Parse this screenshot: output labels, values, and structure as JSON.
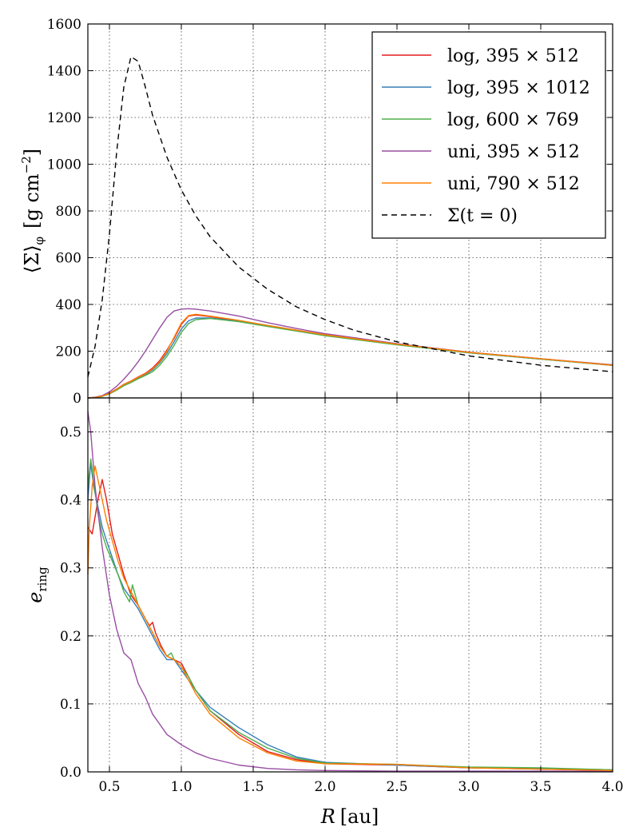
{
  "chart_data": [
    {
      "type": "line",
      "panel": "top",
      "xlim": [
        0.35,
        4.0
      ],
      "ylim": [
        0,
        1600
      ],
      "x_ticks": [
        "0.5",
        "1.0",
        "1.5",
        "2.0",
        "2.5",
        "3.0",
        "3.5",
        "4.0"
      ],
      "y_ticks": [
        "0",
        "200",
        "400",
        "600",
        "800",
        "1000",
        "1200",
        "1400",
        "1600"
      ],
      "grid": true,
      "ylabel_parts": [
        "⟨Σ⟩",
        "φ",
        "[g cm",
        "−2",
        "]"
      ],
      "legend_position": "top-right",
      "legend": [
        {
          "label": "log,  395 × 512",
          "color": "#e41a1c",
          "style": "solid"
        },
        {
          "label": "log,  395 × 1012",
          "color": "#377eb8",
          "style": "solid"
        },
        {
          "label": "log,  600 × 769",
          "color": "#4daf4a",
          "style": "solid"
        },
        {
          "label": "uni,  395 × 512",
          "color": "#984ea3",
          "style": "solid"
        },
        {
          "label": "uni,  790 × 512",
          "color": "#ff7f00",
          "style": "solid"
        },
        {
          "label": "Σ(t = 0)",
          "color": "#000000",
          "style": "dashed"
        }
      ],
      "series": [
        {
          "name": "log,  395 × 512",
          "color": "#e41a1c",
          "dash": false,
          "x": [
            0.35,
            0.4,
            0.45,
            0.5,
            0.55,
            0.6,
            0.65,
            0.7,
            0.75,
            0.8,
            0.85,
            0.9,
            0.95,
            1.0,
            1.05,
            1.1,
            1.2,
            1.4,
            1.6,
            1.8,
            2.0,
            2.5,
            3.0,
            3.5,
            4.0
          ],
          "y": [
            0,
            2,
            8,
            20,
            38,
            58,
            72,
            90,
            105,
            128,
            160,
            205,
            255,
            315,
            350,
            355,
            348,
            330,
            310,
            290,
            270,
            230,
            195,
            168,
            140
          ]
        },
        {
          "name": "log,  395 × 1012",
          "color": "#377eb8",
          "dash": false,
          "x": [
            0.35,
            0.4,
            0.45,
            0.5,
            0.55,
            0.6,
            0.65,
            0.7,
            0.75,
            0.8,
            0.85,
            0.9,
            0.95,
            1.0,
            1.05,
            1.1,
            1.2,
            1.4,
            1.6,
            1.8,
            2.0,
            2.5,
            3.0,
            3.5,
            4.0
          ],
          "y": [
            0,
            2,
            7,
            18,
            35,
            55,
            70,
            86,
            100,
            120,
            150,
            190,
            240,
            295,
            330,
            342,
            342,
            328,
            308,
            288,
            268,
            228,
            193,
            166,
            139
          ]
        },
        {
          "name": "log,  600 × 769",
          "color": "#4daf4a",
          "dash": false,
          "x": [
            0.35,
            0.4,
            0.45,
            0.5,
            0.55,
            0.6,
            0.65,
            0.7,
            0.75,
            0.8,
            0.85,
            0.9,
            0.95,
            1.0,
            1.05,
            1.1,
            1.2,
            1.4,
            1.6,
            1.8,
            2.0,
            2.5,
            3.0,
            3.5,
            4.0
          ],
          "y": [
            0,
            2,
            7,
            17,
            33,
            52,
            66,
            82,
            96,
            112,
            140,
            178,
            225,
            280,
            318,
            335,
            340,
            326,
            306,
            286,
            266,
            227,
            193,
            166,
            139
          ]
        },
        {
          "name": "uni,  395 × 512",
          "color": "#984ea3",
          "dash": false,
          "x": [
            0.35,
            0.4,
            0.45,
            0.5,
            0.55,
            0.6,
            0.65,
            0.7,
            0.75,
            0.8,
            0.85,
            0.9,
            0.95,
            1.0,
            1.05,
            1.1,
            1.2,
            1.4,
            1.6,
            1.8,
            2.0,
            2.5,
            3.0,
            3.5,
            4.0
          ],
          "y": [
            0,
            3,
            10,
            26,
            50,
            80,
            115,
            155,
            200,
            250,
            300,
            345,
            372,
            380,
            382,
            380,
            372,
            350,
            322,
            297,
            275,
            232,
            196,
            168,
            142
          ]
        },
        {
          "name": "uni,  790 × 512",
          "color": "#ff7f00",
          "dash": false,
          "x": [
            0.35,
            0.4,
            0.45,
            0.5,
            0.55,
            0.6,
            0.65,
            0.7,
            0.75,
            0.8,
            0.85,
            0.9,
            0.95,
            1.0,
            1.05,
            1.1,
            1.2,
            1.4,
            1.6,
            1.8,
            2.0,
            2.5,
            3.0,
            3.5,
            4.0
          ],
          "y": [
            0,
            2,
            8,
            19,
            37,
            57,
            71,
            88,
            103,
            124,
            155,
            200,
            260,
            320,
            352,
            358,
            350,
            332,
            310,
            290,
            270,
            230,
            195,
            168,
            140
          ]
        },
        {
          "name": "Σ(t = 0)",
          "color": "#000000",
          "dash": true,
          "x": [
            0.35,
            0.4,
            0.45,
            0.5,
            0.55,
            0.6,
            0.65,
            0.7,
            0.75,
            0.8,
            0.9,
            1.0,
            1.1,
            1.2,
            1.4,
            1.6,
            1.8,
            2.0,
            2.2,
            2.5,
            3.0,
            3.5,
            4.0
          ],
          "y": [
            90,
            220,
            420,
            700,
            1050,
            1330,
            1460,
            1440,
            1330,
            1210,
            1030,
            890,
            780,
            690,
            560,
            465,
            390,
            335,
            290,
            240,
            180,
            140,
            112
          ]
        }
      ]
    },
    {
      "type": "line",
      "panel": "bottom",
      "xlim": [
        0.35,
        4.0
      ],
      "ylim": [
        0,
        0.55
      ],
      "x_ticks": [
        "0.5",
        "1.0",
        "1.5",
        "2.0",
        "2.5",
        "3.0",
        "3.5",
        "4.0"
      ],
      "y_ticks": [
        "0.0",
        "0.1",
        "0.2",
        "0.3",
        "0.4",
        "0.5"
      ],
      "grid": true,
      "xlabel_parts": [
        "R",
        "[au]"
      ],
      "ylabel_parts": [
        "e",
        "ring"
      ],
      "series": [
        {
          "name": "log,  395 × 512",
          "color": "#e41a1c",
          "x": [
            0.35,
            0.38,
            0.42,
            0.45,
            0.48,
            0.52,
            0.56,
            0.6,
            0.65,
            0.7,
            0.75,
            0.78,
            0.8,
            0.82,
            0.86,
            0.9,
            0.95,
            1.0,
            1.05,
            1.1,
            1.2,
            1.4,
            1.6,
            1.8,
            2.0,
            2.5,
            3.0,
            3.5,
            4.0
          ],
          "y": [
            0.36,
            0.35,
            0.4,
            0.43,
            0.4,
            0.35,
            0.32,
            0.29,
            0.26,
            0.245,
            0.225,
            0.215,
            0.22,
            0.205,
            0.185,
            0.17,
            0.165,
            0.16,
            0.14,
            0.12,
            0.09,
            0.055,
            0.03,
            0.018,
            0.012,
            0.01,
            0.006,
            0.004,
            0.002
          ]
        },
        {
          "name": "log,  395 × 1012",
          "color": "#377eb8",
          "x": [
            0.35,
            0.37,
            0.39,
            0.42,
            0.45,
            0.48,
            0.52,
            0.56,
            0.6,
            0.65,
            0.7,
            0.75,
            0.8,
            0.85,
            0.9,
            0.95,
            1.0,
            1.05,
            1.1,
            1.2,
            1.4,
            1.6,
            1.8,
            2.0,
            2.5,
            3.0,
            3.5,
            4.0
          ],
          "y": [
            0.4,
            0.455,
            0.42,
            0.39,
            0.36,
            0.34,
            0.315,
            0.29,
            0.27,
            0.255,
            0.24,
            0.22,
            0.2,
            0.18,
            0.165,
            0.165,
            0.15,
            0.135,
            0.12,
            0.095,
            0.065,
            0.04,
            0.022,
            0.014,
            0.01,
            0.006,
            0.005,
            0.003
          ]
        },
        {
          "name": "log,  600 × 769",
          "color": "#4daf4a",
          "x": [
            0.35,
            0.37,
            0.39,
            0.42,
            0.45,
            0.48,
            0.52,
            0.56,
            0.6,
            0.64,
            0.66,
            0.7,
            0.75,
            0.8,
            0.85,
            0.9,
            0.93,
            0.95,
            1.0,
            1.05,
            1.1,
            1.2,
            1.4,
            1.6,
            1.8,
            2.0,
            2.5,
            3.0,
            3.5,
            4.0
          ],
          "y": [
            0.42,
            0.46,
            0.43,
            0.38,
            0.35,
            0.33,
            0.31,
            0.29,
            0.265,
            0.25,
            0.275,
            0.245,
            0.225,
            0.205,
            0.185,
            0.17,
            0.175,
            0.165,
            0.155,
            0.14,
            0.12,
            0.09,
            0.058,
            0.035,
            0.02,
            0.013,
            0.011,
            0.007,
            0.006,
            0.003
          ]
        },
        {
          "name": "uni,  395 × 512",
          "color": "#984ea3",
          "x": [
            0.35,
            0.37,
            0.4,
            0.45,
            0.5,
            0.55,
            0.6,
            0.65,
            0.7,
            0.75,
            0.8,
            0.85,
            0.9,
            1.0,
            1.1,
            1.2,
            1.4,
            1.6,
            1.8,
            2.0,
            2.5,
            3.0,
            3.5,
            4.0
          ],
          "y": [
            0.53,
            0.5,
            0.42,
            0.33,
            0.26,
            0.21,
            0.175,
            0.165,
            0.13,
            0.11,
            0.085,
            0.07,
            0.055,
            0.04,
            0.028,
            0.02,
            0.01,
            0.005,
            0.003,
            0.002,
            0.001,
            0.001,
            0.001,
            0.001
          ]
        },
        {
          "name": "uni,  790 × 512",
          "color": "#ff7f00",
          "x": [
            0.35,
            0.36,
            0.38,
            0.4,
            0.42,
            0.45,
            0.48,
            0.52,
            0.56,
            0.6,
            0.65,
            0.7,
            0.75,
            0.8,
            0.85,
            0.9,
            0.95,
            1.0,
            1.05,
            1.1,
            1.2,
            1.4,
            1.6,
            1.8,
            2.0,
            2.5,
            3.0,
            3.5,
            4.0
          ],
          "y": [
            0.29,
            0.36,
            0.42,
            0.45,
            0.43,
            0.4,
            0.37,
            0.34,
            0.31,
            0.285,
            0.265,
            0.245,
            0.225,
            0.205,
            0.185,
            0.17,
            0.165,
            0.155,
            0.135,
            0.115,
            0.085,
            0.05,
            0.028,
            0.016,
            0.012,
            0.011,
            0.006,
            0.004,
            0.002
          ]
        }
      ]
    }
  ]
}
